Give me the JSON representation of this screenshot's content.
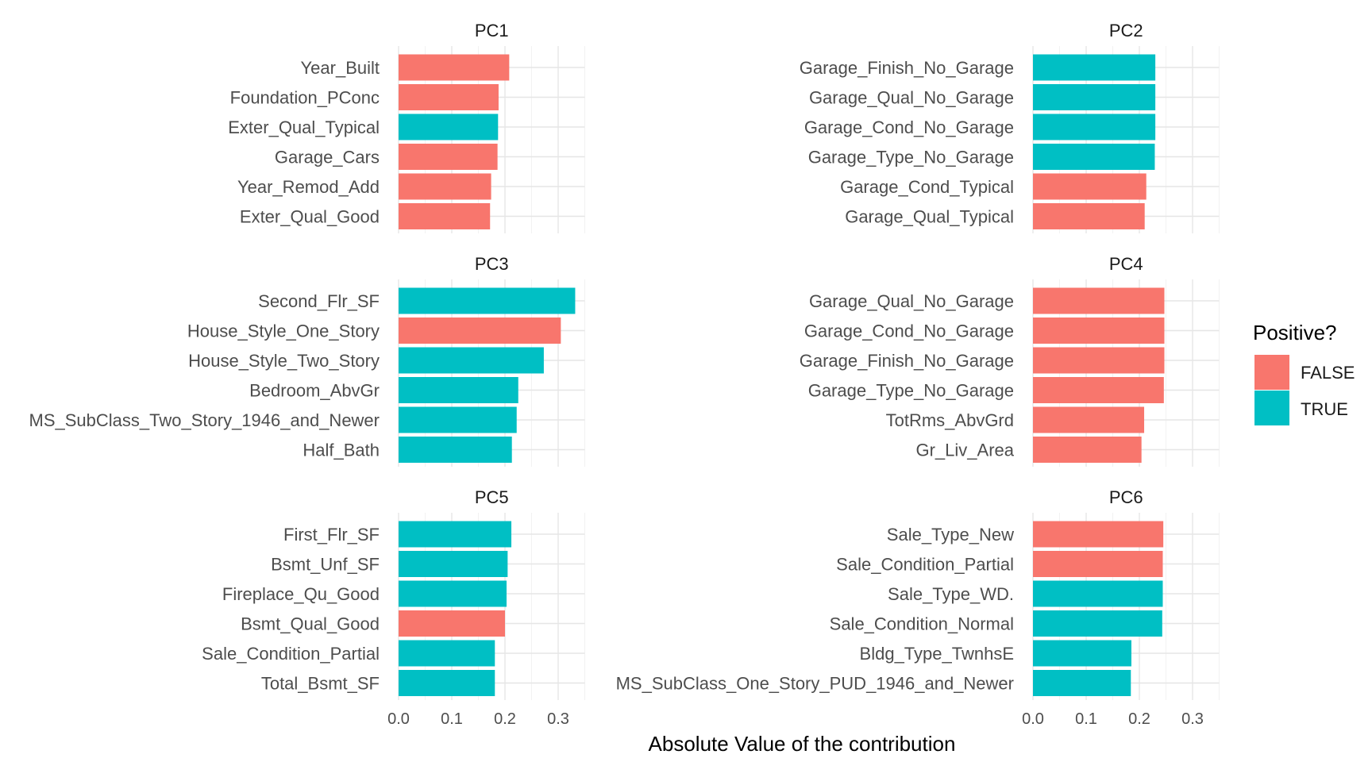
{
  "chart_data": {
    "type": "bar",
    "orientation": "horizontal",
    "xlabel": "Absolute Value of the contribution",
    "ylabel": "",
    "xlim": [
      0,
      0.35
    ],
    "xticks": [
      "0.0",
      "0.1",
      "0.2",
      "0.3"
    ],
    "xtick_values": [
      0,
      0.1,
      0.2,
      0.3
    ],
    "grid": true,
    "legend": {
      "title": "Positive?",
      "position": "right",
      "entries": [
        {
          "label": "FALSE",
          "color": "#F8766D"
        },
        {
          "label": "TRUE",
          "color": "#00BFC4"
        }
      ]
    },
    "panels": [
      {
        "title": "PC1",
        "categories": [
          "Year_Built",
          "Foundation_PConc",
          "Exter_Qual_Typical",
          "Garage_Cars",
          "Year_Remod_Add",
          "Exter_Qual_Good"
        ],
        "values": [
          0.208,
          0.188,
          0.187,
          0.186,
          0.174,
          0.172
        ],
        "positive": [
          false,
          false,
          true,
          false,
          false,
          false
        ]
      },
      {
        "title": "PC2",
        "categories": [
          "Garage_Finish_No_Garage",
          "Garage_Qual_No_Garage",
          "Garage_Cond_No_Garage",
          "Garage_Type_No_Garage",
          "Garage_Cond_Typical",
          "Garage_Qual_Typical"
        ],
        "values": [
          0.23,
          0.23,
          0.23,
          0.229,
          0.213,
          0.21
        ],
        "positive": [
          true,
          true,
          true,
          true,
          false,
          false
        ]
      },
      {
        "title": "PC3",
        "categories": [
          "Second_Flr_SF",
          "House_Style_One_Story",
          "House_Style_Two_Story",
          "Bedroom_AbvGr",
          "MS_SubClass_Two_Story_1946_and_Newer",
          "Half_Bath"
        ],
        "values": [
          0.332,
          0.305,
          0.273,
          0.225,
          0.222,
          0.213
        ],
        "positive": [
          true,
          false,
          true,
          true,
          true,
          true
        ]
      },
      {
        "title": "PC4",
        "categories": [
          "Garage_Qual_No_Garage",
          "Garage_Cond_No_Garage",
          "Garage_Finish_No_Garage",
          "Garage_Type_No_Garage",
          "TotRms_AbvGrd",
          "Gr_Liv_Area"
        ],
        "values": [
          0.247,
          0.247,
          0.247,
          0.246,
          0.209,
          0.204
        ],
        "positive": [
          false,
          false,
          false,
          false,
          false,
          false
        ]
      },
      {
        "title": "PC5",
        "categories": [
          "First_Flr_SF",
          "Bsmt_Unf_SF",
          "Fireplace_Qu_Good",
          "Bsmt_Qual_Good",
          "Sale_Condition_Partial",
          "Total_Bsmt_SF"
        ],
        "values": [
          0.212,
          0.205,
          0.203,
          0.2,
          0.181,
          0.181
        ],
        "positive": [
          true,
          true,
          true,
          false,
          true,
          true
        ]
      },
      {
        "title": "PC6",
        "categories": [
          "Sale_Type_New",
          "Sale_Condition_Partial",
          "Sale_Type_WD.",
          "Sale_Condition_Normal",
          "Bldg_Type_TwnhsE",
          "MS_SubClass_One_Story_PUD_1946_and_Newer"
        ],
        "values": [
          0.245,
          0.244,
          0.244,
          0.243,
          0.185,
          0.184
        ],
        "positive": [
          false,
          false,
          true,
          true,
          true,
          true
        ]
      }
    ]
  }
}
